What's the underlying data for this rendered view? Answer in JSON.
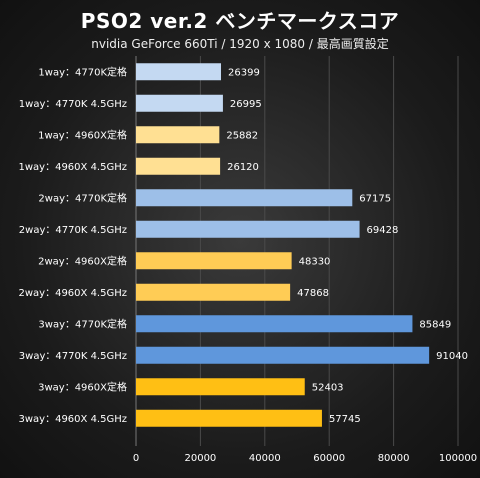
{
  "chart_data": {
    "type": "bar",
    "orientation": "horizontal",
    "title": "PSO2 ver.2 ベンチマークスコア",
    "subtitle": "nvidia GeForce 660Ti / 1920 x 1080 / 最高画質設定",
    "categories": [
      "1way：4770K定格",
      "1way：4770K 4.5GHz",
      "1way：4960X定格",
      "1way：4960X 4.5GHz",
      "2way：4770K定格",
      "2way：4770K 4.5GHz",
      "2way：4960X定格",
      "2way：4960X 4.5GHz",
      "3way：4770K定格",
      "3way：4770K 4.5GHz",
      "3way：4960X定格",
      "3way：4960X 4.5GHz"
    ],
    "values": [
      26399,
      26995,
      25882,
      26120,
      67175,
      69428,
      48330,
      47868,
      85849,
      91040,
      52403,
      57745
    ],
    "colors": [
      "#c4d9f2",
      "#c4d9f2",
      "#ffe093",
      "#ffe093",
      "#9dbfe8",
      "#9dbfe8",
      "#ffcc55",
      "#ffcc55",
      "#5f97dc",
      "#5f97dc",
      "#ffbf14",
      "#ffbf14"
    ],
    "xlim": [
      0,
      100000
    ],
    "xticks": [
      0,
      20000,
      40000,
      60000,
      80000,
      100000
    ],
    "grid": true
  }
}
